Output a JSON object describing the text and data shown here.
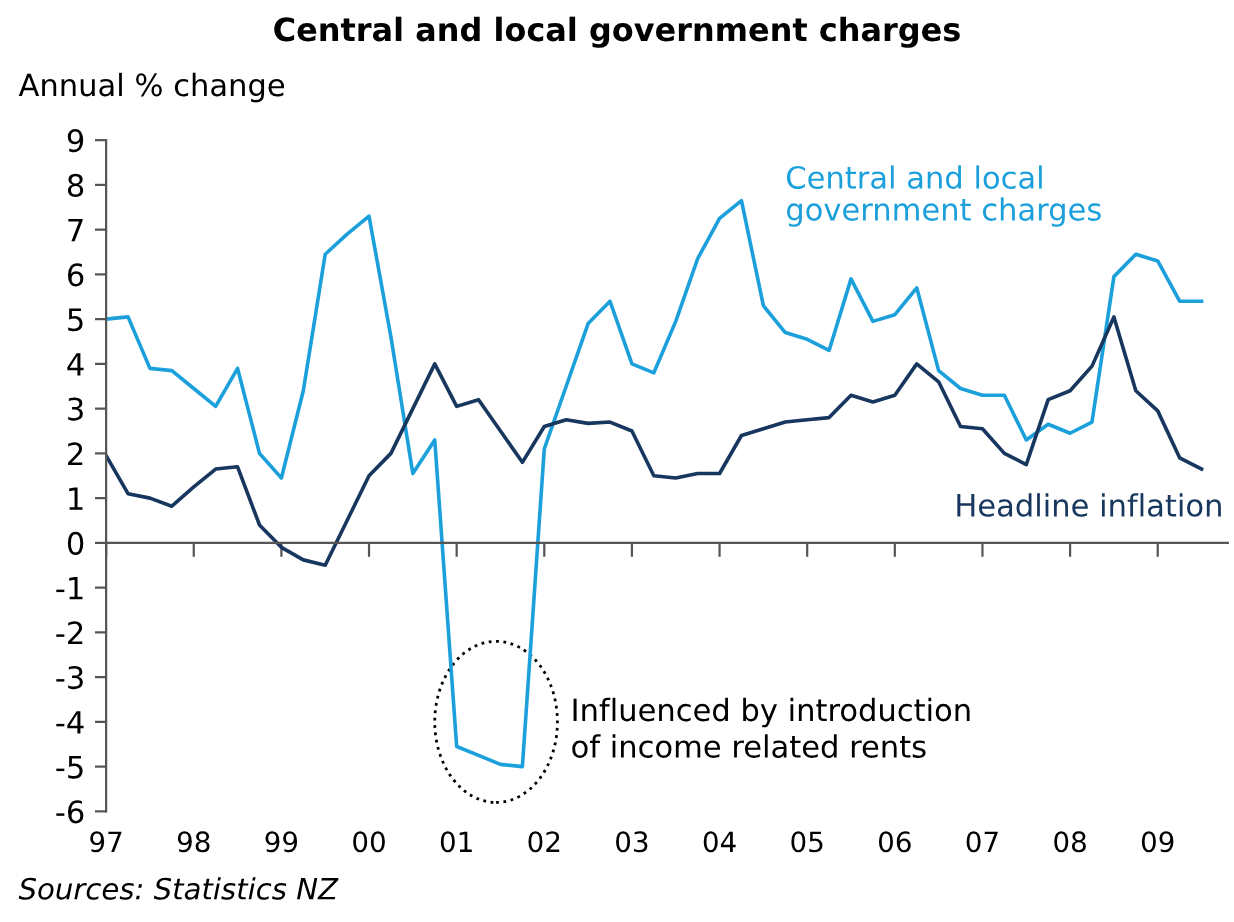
{
  "chart_data": {
    "type": "line",
    "title": "Central and local government charges",
    "ylabel": "Annual % change",
    "x": [
      1997.0,
      1997.25,
      1997.5,
      1997.75,
      1998.0,
      1998.25,
      1998.5,
      1998.75,
      1999.0,
      1999.25,
      1999.5,
      1999.75,
      2000.0,
      2000.25,
      2000.5,
      2000.75,
      2001.0,
      2001.25,
      2001.5,
      2001.75,
      2002.0,
      2002.25,
      2002.5,
      2002.75,
      2003.0,
      2003.25,
      2003.5,
      2003.75,
      2004.0,
      2004.25,
      2004.5,
      2004.75,
      2005.0,
      2005.25,
      2005.5,
      2005.75,
      2006.0,
      2006.25,
      2006.5,
      2006.75,
      2007.0,
      2007.25,
      2007.5,
      2007.75,
      2008.0,
      2008.25,
      2008.5,
      2008.75,
      2009.0,
      2009.25,
      2009.5
    ],
    "series": [
      {
        "name": "Central and local\ngovernment charges",
        "color": "#1ca0dc",
        "values": [
          5.0,
          5.05,
          3.9,
          3.85,
          3.45,
          3.05,
          3.9,
          2.0,
          1.45,
          3.4,
          6.45,
          6.9,
          7.3,
          4.6,
          1.55,
          2.3,
          -4.55,
          -4.75,
          -4.95,
          -5.0,
          2.1,
          3.5,
          4.9,
          5.4,
          4.0,
          3.8,
          4.95,
          6.35,
          7.25,
          7.65,
          5.3,
          4.7,
          4.55,
          4.3,
          5.9,
          4.95,
          5.1,
          5.7,
          3.85,
          3.45,
          3.3,
          3.3,
          2.3,
          2.65,
          2.45,
          2.7,
          5.95,
          6.45,
          6.3,
          5.4,
          5.4
        ]
      },
      {
        "name": "Headline inflation",
        "color": "#17375e",
        "values": [
          1.95,
          1.1,
          1.0,
          0.82,
          1.25,
          1.65,
          1.7,
          0.4,
          -0.1,
          -0.38,
          -0.5,
          0.5,
          1.5,
          2.0,
          3.0,
          4.0,
          3.05,
          3.2,
          2.5,
          1.8,
          2.6,
          2.75,
          2.67,
          2.7,
          2.5,
          1.5,
          1.45,
          1.55,
          1.55,
          2.4,
          2.55,
          2.7,
          2.75,
          2.8,
          3.3,
          3.15,
          3.3,
          4.0,
          3.6,
          2.6,
          2.55,
          2.0,
          1.75,
          3.2,
          3.4,
          3.95,
          5.05,
          3.4,
          2.95,
          1.9,
          1.65
        ]
      }
    ],
    "xlim": [
      1997.0,
      2009.8
    ],
    "ylim": [
      -6,
      9
    ],
    "xticks": [
      {
        "value": 1997,
        "label": "97"
      },
      {
        "value": 1998,
        "label": "98"
      },
      {
        "value": 1999,
        "label": "99"
      },
      {
        "value": 2000,
        "label": "00"
      },
      {
        "value": 2001,
        "label": "01"
      },
      {
        "value": 2002,
        "label": "02"
      },
      {
        "value": 2003,
        "label": "03"
      },
      {
        "value": 2004,
        "label": "04"
      },
      {
        "value": 2005,
        "label": "05"
      },
      {
        "value": 2006,
        "label": "06"
      },
      {
        "value": 2007,
        "label": "07"
      },
      {
        "value": 2008,
        "label": "08"
      },
      {
        "value": 2009,
        "label": "09"
      }
    ],
    "yticks": [
      -6,
      -5,
      -4,
      -3,
      -2,
      -1,
      0,
      1,
      2,
      3,
      4,
      5,
      6,
      7,
      8,
      9
    ],
    "legend": false,
    "annotations": [
      "Influenced by introduction\nof income related rents",
      "Sources: Statistics NZ"
    ]
  }
}
